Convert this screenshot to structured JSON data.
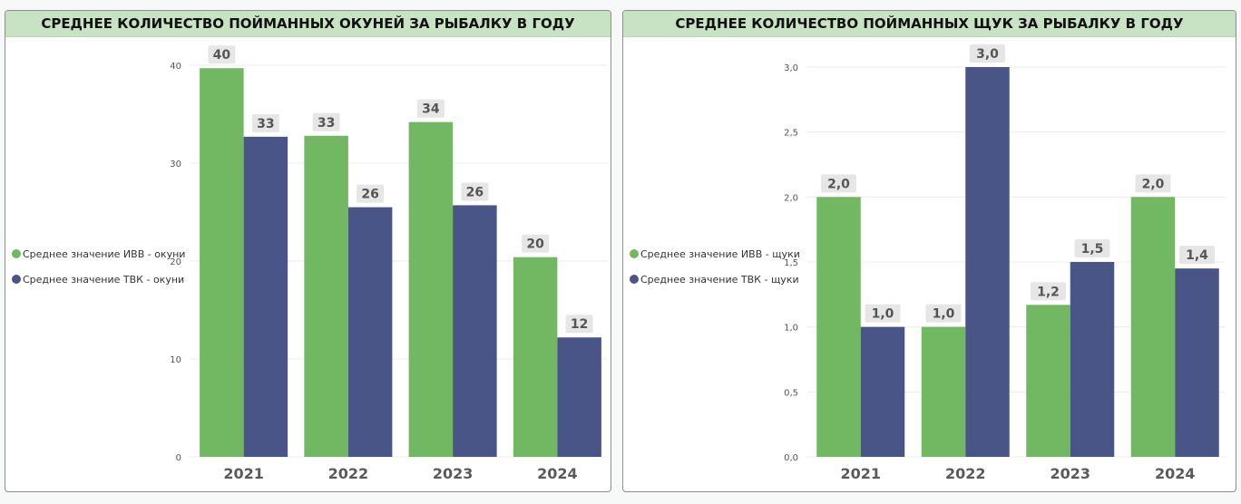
{
  "colors": {
    "series1": "#72b762",
    "series2": "#4a5587",
    "header": "#c8e3c4"
  },
  "chart_data": [
    {
      "type": "bar",
      "title": "СРЕДНЕЕ КОЛИЧЕСТВО ПОЙМАННЫХ ОКУНЕЙ ЗА РЫБАЛКУ В ГОДУ",
      "categories": [
        "2021",
        "2022",
        "2023",
        "2024"
      ],
      "series": [
        {
          "name": "Среднее значение ИВВ - окуни",
          "values": [
            39.7,
            32.8,
            34.2,
            20.4
          ],
          "labels": [
            "40",
            "33",
            "34",
            "20"
          ]
        },
        {
          "name": "Среднее значение ТВК - окуни",
          "values": [
            32.7,
            25.5,
            25.7,
            12.2
          ],
          "labels": [
            "33",
            "26",
            "26",
            "12"
          ]
        }
      ],
      "yticks": [
        "0",
        "10",
        "20",
        "30",
        "40"
      ],
      "ylim": [
        0,
        40
      ],
      "grid": true,
      "legend_position": "left"
    },
    {
      "type": "bar",
      "title": "СРЕДНЕЕ КОЛИЧЕСТВО ПОЙМАННЫХ ЩУК ЗА РЫБАЛКУ В ГОДУ",
      "categories": [
        "2021",
        "2022",
        "2023",
        "2024"
      ],
      "series": [
        {
          "name": "Среднее значение ИВВ - щуки",
          "values": [
            2.0,
            1.0,
            1.17,
            2.0
          ],
          "labels": [
            "2,0",
            "1,0",
            "1,2",
            "2,0"
          ]
        },
        {
          "name": "Среднее значение ТВК - щуки",
          "values": [
            1.0,
            3.0,
            1.5,
            1.45
          ],
          "labels": [
            "1,0",
            "3,0",
            "1,5",
            "1,4"
          ]
        }
      ],
      "yticks": [
        "0,0",
        "0,5",
        "1,0",
        "1,5",
        "2,0",
        "2,5",
        "3,0"
      ],
      "ylim": [
        0,
        3.0
      ],
      "grid": true,
      "legend_position": "left"
    }
  ]
}
